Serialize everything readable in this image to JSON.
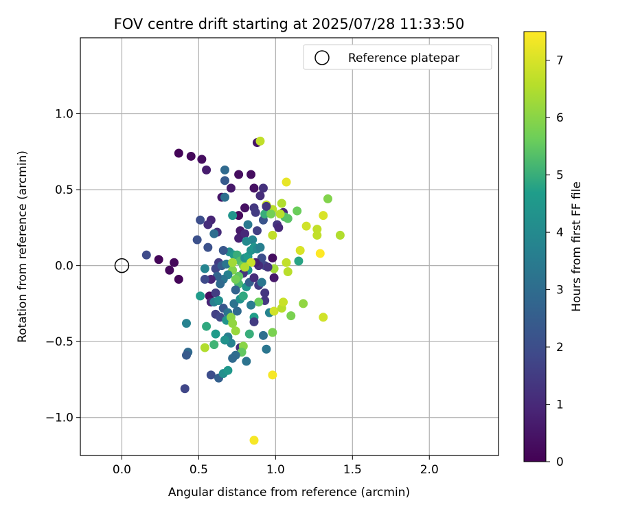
{
  "chart_data": {
    "type": "scatter",
    "title": "FOV centre drift starting at 2025/07/28 11:33:50",
    "xlabel": "Angular distance from reference (arcmin)",
    "ylabel": "Rotation from reference (arcmin)",
    "xlim": [
      -0.27,
      2.45
    ],
    "ylim": [
      -1.25,
      1.5
    ],
    "xticks": [
      0.0,
      0.5,
      1.0,
      1.5,
      2.0
    ],
    "xtick_labels": [
      "0.0",
      "0.5",
      "1.0",
      "1.5",
      "2.0"
    ],
    "yticks": [
      1.0,
      0.5,
      0.0,
      -0.5,
      -1.0
    ],
    "ytick_labels": [
      "1.0",
      "0.5",
      "0.0",
      "−0.5",
      "−1.0"
    ],
    "grid": true,
    "legend": {
      "placement": "top-right",
      "entries": [
        "Reference platepar"
      ]
    },
    "reference_point": {
      "x": 0.0,
      "y": 0.0
    },
    "colorbar": {
      "label": "Hours from first FF file",
      "range": [
        0,
        7.5
      ],
      "ticks": [
        0,
        1,
        2,
        3,
        4,
        5,
        6,
        7
      ],
      "tick_labels": [
        "0",
        "1",
        "2",
        "3",
        "4",
        "5",
        "6",
        "7"
      ],
      "colormap": "viridis",
      "colors": [
        "#440154",
        "#482777",
        "#3f4a8a",
        "#31678e",
        "#26838f",
        "#1f9d8a",
        "#6cce5a",
        "#b6de2b",
        "#fee825"
      ]
    },
    "points": [
      {
        "x": 0.37,
        "y": 0.74,
        "h": 0.1
      },
      {
        "x": 0.45,
        "y": 0.72,
        "h": 0.2
      },
      {
        "x": 0.52,
        "y": 0.7,
        "h": 0.3
      },
      {
        "x": 0.55,
        "y": 0.63,
        "h": 0.7
      },
      {
        "x": 0.24,
        "y": 0.04,
        "h": 0.1
      },
      {
        "x": 0.34,
        "y": 0.02,
        "h": 0.2
      },
      {
        "x": 0.31,
        "y": -0.03,
        "h": 0.2
      },
      {
        "x": 0.37,
        "y": -0.09,
        "h": 0.1
      },
      {
        "x": 0.16,
        "y": 0.07,
        "h": 1.9
      },
      {
        "x": 0.76,
        "y": 0.6,
        "h": 0.3
      },
      {
        "x": 0.84,
        "y": 0.6,
        "h": 0.3
      },
      {
        "x": 0.88,
        "y": 0.81,
        "h": 0.5
      },
      {
        "x": 0.71,
        "y": 0.51,
        "h": 0.6
      },
      {
        "x": 0.86,
        "y": 0.51,
        "h": 0.4
      },
      {
        "x": 0.92,
        "y": 0.51,
        "h": 1.2
      },
      {
        "x": 0.67,
        "y": 0.56,
        "h": 2.4
      },
      {
        "x": 0.67,
        "y": 0.63,
        "h": 2.9
      },
      {
        "x": 0.65,
        "y": 0.45,
        "h": 0.5
      },
      {
        "x": 0.67,
        "y": 0.45,
        "h": 3.1
      },
      {
        "x": 0.8,
        "y": 0.38,
        "h": 0.4
      },
      {
        "x": 0.9,
        "y": 0.46,
        "h": 1.1
      },
      {
        "x": 0.86,
        "y": 0.38,
        "h": 1.4
      },
      {
        "x": 0.76,
        "y": 0.33,
        "h": 0.2
      },
      {
        "x": 0.72,
        "y": 0.33,
        "h": 4.4
      },
      {
        "x": 0.58,
        "y": 0.3,
        "h": 0.9
      },
      {
        "x": 0.56,
        "y": 0.27,
        "h": 1.1
      },
      {
        "x": 0.51,
        "y": 0.3,
        "h": 2.0
      },
      {
        "x": 0.62,
        "y": 0.22,
        "h": 1.1
      },
      {
        "x": 0.6,
        "y": 0.21,
        "h": 3.0
      },
      {
        "x": 0.49,
        "y": 0.17,
        "h": 2.1
      },
      {
        "x": 0.56,
        "y": 0.12,
        "h": 2.1
      },
      {
        "x": 0.77,
        "y": 0.23,
        "h": 0.6
      },
      {
        "x": 0.76,
        "y": 0.18,
        "h": 0.8
      },
      {
        "x": 0.8,
        "y": 0.21,
        "h": 1.0
      },
      {
        "x": 0.82,
        "y": 0.27,
        "h": 3.4
      },
      {
        "x": 0.87,
        "y": 0.35,
        "h": 1.5
      },
      {
        "x": 0.92,
        "y": 0.3,
        "h": 2.2
      },
      {
        "x": 0.93,
        "y": 0.34,
        "h": 5.0
      },
      {
        "x": 0.85,
        "y": 0.17,
        "h": 3.8
      },
      {
        "x": 0.81,
        "y": 0.16,
        "h": 4.0
      },
      {
        "x": 1.01,
        "y": 0.27,
        "h": 1.3
      },
      {
        "x": 1.02,
        "y": 0.25,
        "h": 1.0
      },
      {
        "x": 1.05,
        "y": 0.35,
        "h": 0.9
      },
      {
        "x": 1.06,
        "y": 0.32,
        "h": 5.3
      },
      {
        "x": 1.08,
        "y": 0.31,
        "h": 5.4
      },
      {
        "x": 1.03,
        "y": 0.34,
        "h": 6.6
      },
      {
        "x": 0.98,
        "y": 0.37,
        "h": 6.6
      },
      {
        "x": 0.94,
        "y": 0.4,
        "h": 6.8
      },
      {
        "x": 1.04,
        "y": 0.41,
        "h": 6.5
      },
      {
        "x": 1.07,
        "y": 0.55,
        "h": 7.2
      },
      {
        "x": 0.9,
        "y": 0.82,
        "h": 6.7
      },
      {
        "x": 1.14,
        "y": 0.36,
        "h": 5.6
      },
      {
        "x": 1.34,
        "y": 0.44,
        "h": 5.9
      },
      {
        "x": 1.31,
        "y": 0.33,
        "h": 7.0
      },
      {
        "x": 1.2,
        "y": 0.26,
        "h": 6.9
      },
      {
        "x": 1.27,
        "y": 0.24,
        "h": 6.7
      },
      {
        "x": 1.27,
        "y": 0.2,
        "h": 6.7
      },
      {
        "x": 1.42,
        "y": 0.2,
        "h": 6.5
      },
      {
        "x": 0.98,
        "y": 0.2,
        "h": 6.7
      },
      {
        "x": 1.15,
        "y": 0.03,
        "h": 4.8
      },
      {
        "x": 1.16,
        "y": 0.1,
        "h": 7.0
      },
      {
        "x": 1.29,
        "y": 0.08,
        "h": 7.5
      },
      {
        "x": 1.07,
        "y": 0.02,
        "h": 6.7
      },
      {
        "x": 1.08,
        "y": -0.04,
        "h": 6.6
      },
      {
        "x": 0.99,
        "y": -0.02,
        "h": 6.3
      },
      {
        "x": 0.98,
        "y": 0.05,
        "h": 0.3
      },
      {
        "x": 0.99,
        "y": -0.08,
        "h": 0.6
      },
      {
        "x": 0.63,
        "y": 0.02,
        "h": 1.5
      },
      {
        "x": 0.61,
        "y": -0.02,
        "h": 1.8
      },
      {
        "x": 0.65,
        "y": 0.0,
        "h": 2.5
      },
      {
        "x": 0.68,
        "y": 0.01,
        "h": 3.3
      },
      {
        "x": 0.7,
        "y": 0.09,
        "h": 4.1
      },
      {
        "x": 0.73,
        "y": 0.07,
        "h": 4.5
      },
      {
        "x": 0.75,
        "y": 0.07,
        "h": 5.0
      },
      {
        "x": 0.77,
        "y": 0.03,
        "h": 5.3
      },
      {
        "x": 0.79,
        "y": 0.0,
        "h": 5.6
      },
      {
        "x": 0.8,
        "y": 0.05,
        "h": 4.2
      },
      {
        "x": 0.82,
        "y": 0.06,
        "h": 4.6
      },
      {
        "x": 0.84,
        "y": 0.1,
        "h": 4.3
      },
      {
        "x": 0.86,
        "y": 0.12,
        "h": 4.4
      },
      {
        "x": 0.88,
        "y": 0.11,
        "h": 4.0
      },
      {
        "x": 0.9,
        "y": 0.12,
        "h": 3.6
      },
      {
        "x": 0.91,
        "y": 0.05,
        "h": 2.0
      },
      {
        "x": 0.93,
        "y": 0.0,
        "h": 1.8
      },
      {
        "x": 0.95,
        "y": -0.01,
        "h": 1.3
      },
      {
        "x": 0.89,
        "y": 0.0,
        "h": 1.1
      },
      {
        "x": 0.87,
        "y": 0.02,
        "h": 0.8
      },
      {
        "x": 0.84,
        "y": 0.02,
        "h": 6.8
      },
      {
        "x": 0.82,
        "y": -0.03,
        "h": 4.4
      },
      {
        "x": 0.79,
        "y": -0.05,
        "h": 1.3
      },
      {
        "x": 0.76,
        "y": -0.07,
        "h": 5.5
      },
      {
        "x": 0.76,
        "y": -0.12,
        "h": 5.2
      },
      {
        "x": 0.74,
        "y": -0.09,
        "h": 5.7
      },
      {
        "x": 0.72,
        "y": -0.03,
        "h": 5.9
      },
      {
        "x": 0.72,
        "y": 0.02,
        "h": 6.3
      },
      {
        "x": 0.69,
        "y": -0.06,
        "h": 3.7
      },
      {
        "x": 0.66,
        "y": -0.09,
        "h": 3.3
      },
      {
        "x": 0.64,
        "y": -0.12,
        "h": 2.9
      },
      {
        "x": 0.62,
        "y": -0.07,
        "h": 2.7
      },
      {
        "x": 0.58,
        "y": -0.09,
        "h": 0.9
      },
      {
        "x": 0.54,
        "y": -0.09,
        "h": 1.9
      },
      {
        "x": 0.54,
        "y": -0.02,
        "h": 3.8
      },
      {
        "x": 0.51,
        "y": -0.2,
        "h": 4.6
      },
      {
        "x": 0.57,
        "y": -0.2,
        "h": 0.3
      },
      {
        "x": 0.58,
        "y": -0.24,
        "h": 0.9
      },
      {
        "x": 0.61,
        "y": -0.18,
        "h": 1.5
      },
      {
        "x": 0.6,
        "y": -0.24,
        "h": 3.6
      },
      {
        "x": 0.63,
        "y": -0.23,
        "h": 4.1
      },
      {
        "x": 0.61,
        "y": -0.32,
        "h": 1.6
      },
      {
        "x": 0.64,
        "y": -0.34,
        "h": 1.8
      },
      {
        "x": 0.66,
        "y": -0.28,
        "h": 2.3
      },
      {
        "x": 0.69,
        "y": -0.31,
        "h": 3.2
      },
      {
        "x": 0.68,
        "y": -0.36,
        "h": 4.4
      },
      {
        "x": 0.71,
        "y": -0.34,
        "h": 6.0
      },
      {
        "x": 0.73,
        "y": -0.25,
        "h": 3.2
      },
      {
        "x": 0.74,
        "y": -0.16,
        "h": 2.7
      },
      {
        "x": 0.77,
        "y": -0.22,
        "h": 4.3
      },
      {
        "x": 0.79,
        "y": -0.2,
        "h": 4.9
      },
      {
        "x": 0.81,
        "y": -0.14,
        "h": 4.4
      },
      {
        "x": 0.83,
        "y": -0.11,
        "h": 2.6
      },
      {
        "x": 0.86,
        "y": -0.08,
        "h": 1.1
      },
      {
        "x": 0.89,
        "y": -0.13,
        "h": 1.5
      },
      {
        "x": 0.91,
        "y": -0.11,
        "h": 3.3
      },
      {
        "x": 0.93,
        "y": -0.18,
        "h": 1.4
      },
      {
        "x": 0.93,
        "y": -0.23,
        "h": 1.4
      },
      {
        "x": 0.89,
        "y": -0.24,
        "h": 5.6
      },
      {
        "x": 0.84,
        "y": -0.26,
        "h": 3.5
      },
      {
        "x": 0.86,
        "y": -0.34,
        "h": 4.7
      },
      {
        "x": 0.86,
        "y": -0.37,
        "h": 1.5
      },
      {
        "x": 0.83,
        "y": -0.45,
        "h": 5.0
      },
      {
        "x": 0.75,
        "y": -0.3,
        "h": 2.9
      },
      {
        "x": 0.72,
        "y": -0.38,
        "h": 6.1
      },
      {
        "x": 0.69,
        "y": -0.47,
        "h": 3.6
      },
      {
        "x": 0.71,
        "y": -0.51,
        "h": 3.7
      },
      {
        "x": 0.74,
        "y": -0.43,
        "h": 6.2
      },
      {
        "x": 0.77,
        "y": -0.54,
        "h": 1.1
      },
      {
        "x": 0.79,
        "y": -0.53,
        "h": 6.0
      },
      {
        "x": 0.78,
        "y": -0.57,
        "h": 5.5
      },
      {
        "x": 0.74,
        "y": -0.59,
        "h": 3.0
      },
      {
        "x": 0.72,
        "y": -0.61,
        "h": 2.9
      },
      {
        "x": 0.67,
        "y": -0.49,
        "h": 4.3
      },
      {
        "x": 0.61,
        "y": -0.45,
        "h": 4.6
      },
      {
        "x": 0.55,
        "y": -0.4,
        "h": 4.9
      },
      {
        "x": 0.6,
        "y": -0.52,
        "h": 5.1
      },
      {
        "x": 0.54,
        "y": -0.54,
        "h": 6.5
      },
      {
        "x": 0.42,
        "y": -0.38,
        "h": 3.7
      },
      {
        "x": 0.43,
        "y": -0.57,
        "h": 2.9
      },
      {
        "x": 0.42,
        "y": -0.59,
        "h": 2.4
      },
      {
        "x": 0.41,
        "y": -0.81,
        "h": 1.8
      },
      {
        "x": 0.58,
        "y": -0.72,
        "h": 2.0
      },
      {
        "x": 0.63,
        "y": -0.74,
        "h": 2.6
      },
      {
        "x": 0.66,
        "y": -0.71,
        "h": 4.2
      },
      {
        "x": 0.69,
        "y": -0.69,
        "h": 4.5
      },
      {
        "x": 0.81,
        "y": -0.63,
        "h": 3.2
      },
      {
        "x": 0.94,
        "y": -0.55,
        "h": 3.3
      },
      {
        "x": 0.92,
        "y": -0.46,
        "h": 3.1
      },
      {
        "x": 0.98,
        "y": -0.44,
        "h": 5.8
      },
      {
        "x": 0.98,
        "y": -0.72,
        "h": 7.4
      },
      {
        "x": 0.86,
        "y": -1.15,
        "h": 7.4
      },
      {
        "x": 0.96,
        "y": -0.31,
        "h": 3.8
      },
      {
        "x": 0.99,
        "y": -0.3,
        "h": 6.9
      },
      {
        "x": 1.04,
        "y": -0.28,
        "h": 6.6
      },
      {
        "x": 1.05,
        "y": -0.24,
        "h": 6.8
      },
      {
        "x": 1.1,
        "y": -0.33,
        "h": 5.8
      },
      {
        "x": 1.18,
        "y": -0.25,
        "h": 6.1
      },
      {
        "x": 1.31,
        "y": -0.34,
        "h": 6.9
      },
      {
        "x": 0.94,
        "y": 0.39,
        "h": 1.3
      },
      {
        "x": 0.97,
        "y": 0.34,
        "h": 5.7
      },
      {
        "x": 0.88,
        "y": 0.23,
        "h": 1.6
      },
      {
        "x": 0.8,
        "y": -0.01,
        "h": 6.5
      },
      {
        "x": 0.66,
        "y": 0.1,
        "h": 2.3
      }
    ]
  }
}
